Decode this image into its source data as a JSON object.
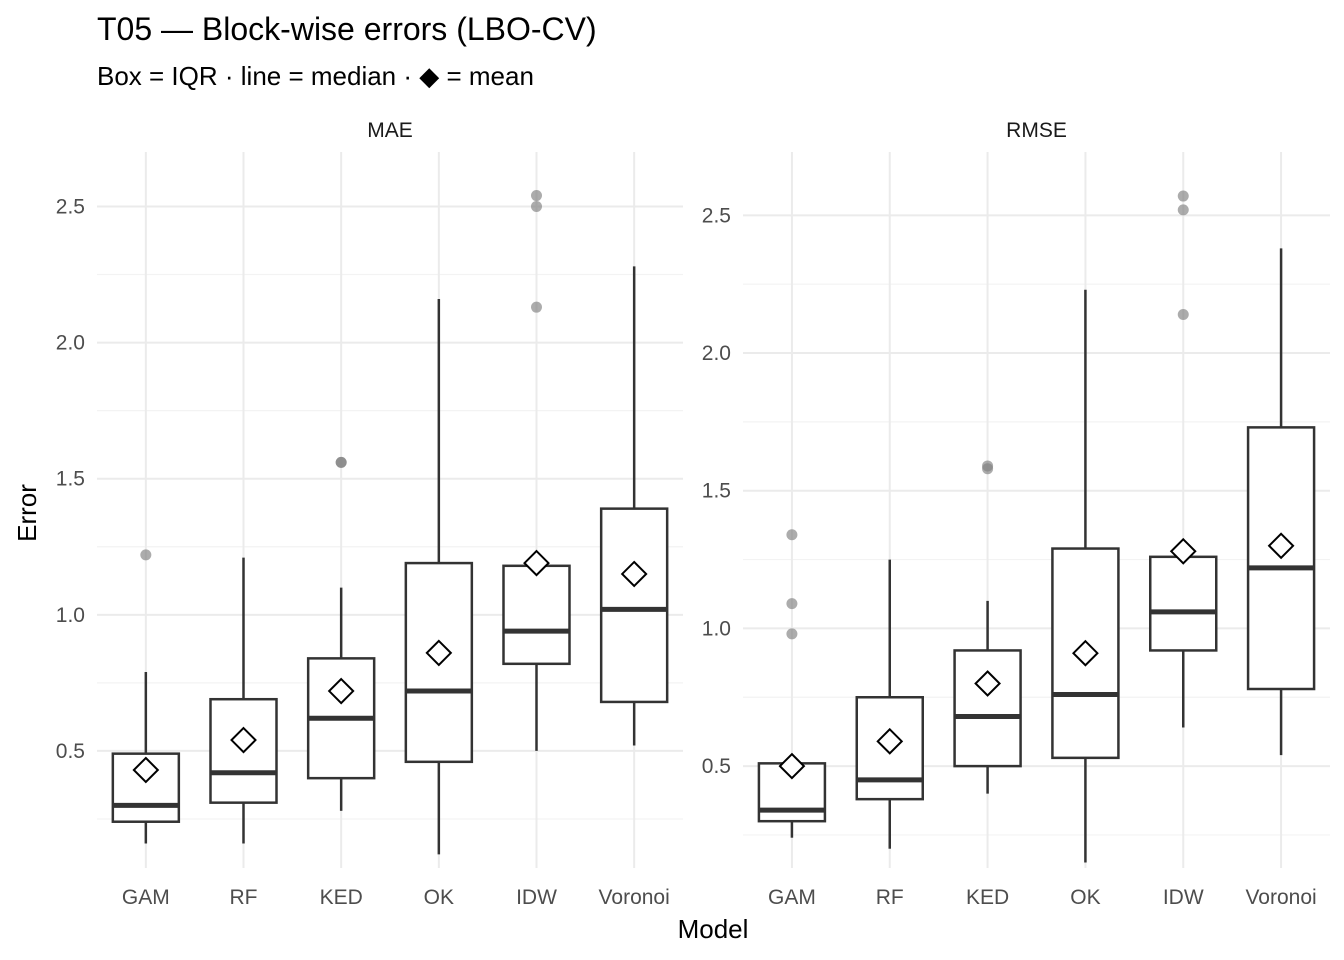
{
  "title": "T05 — Block-wise errors (LBO-CV)",
  "subtitle": "Box = IQR · line = median ·  ◆  = mean",
  "xlabel": "Model",
  "ylabel": "Error",
  "colors": {
    "box_stroke": "#333333",
    "outlier": "#7f7f7f",
    "grid_major": "#ebebeb",
    "grid_minor": "#f3f3f3",
    "mean_marker_stroke": "#000000",
    "mean_marker_fill": "#ffffff"
  },
  "chart_data": {
    "type": "box",
    "categories": [
      "GAM",
      "RF",
      "KED",
      "OK",
      "IDW",
      "Voronoi"
    ],
    "grid": true,
    "facets": [
      {
        "name": "MAE",
        "y_ticks": [
          0.5,
          1.0,
          1.5,
          2.0,
          2.5
        ],
        "y_tick_labels": [
          "0.5",
          "1.0",
          "1.5",
          "2.0",
          "2.5"
        ],
        "ylim": [
          0.07,
          2.7
        ],
        "boxes": [
          {
            "model": "GAM",
            "whisker_low": 0.16,
            "q1": 0.24,
            "median": 0.3,
            "q3": 0.49,
            "whisker_high": 0.79,
            "mean": 0.43,
            "outliers": [
              1.22
            ]
          },
          {
            "model": "RF",
            "whisker_low": 0.16,
            "q1": 0.31,
            "median": 0.42,
            "q3": 0.69,
            "whisker_high": 1.21,
            "mean": 0.54,
            "outliers": []
          },
          {
            "model": "KED",
            "whisker_low": 0.28,
            "q1": 0.4,
            "median": 0.62,
            "q3": 0.84,
            "whisker_high": 1.1,
            "mean": 0.72,
            "outliers": [
              1.56,
              1.56
            ]
          },
          {
            "model": "OK",
            "whisker_low": 0.12,
            "q1": 0.46,
            "median": 0.72,
            "q3": 1.19,
            "whisker_high": 2.16,
            "mean": 0.86,
            "outliers": []
          },
          {
            "model": "IDW",
            "whisker_low": 0.5,
            "q1": 0.82,
            "median": 0.94,
            "q3": 1.18,
            "whisker_high": 1.18,
            "mean": 1.19,
            "outliers": [
              2.13,
              2.5,
              2.54
            ]
          },
          {
            "model": "Voronoi",
            "whisker_low": 0.52,
            "q1": 0.68,
            "median": 1.02,
            "q3": 1.39,
            "whisker_high": 2.28,
            "mean": 1.15,
            "outliers": []
          }
        ]
      },
      {
        "name": "RMSE",
        "y_ticks": [
          0.5,
          1.0,
          1.5,
          2.0,
          2.5
        ],
        "y_tick_labels": [
          "0.5",
          "1.0",
          "1.5",
          "2.0",
          "2.5"
        ],
        "ylim": [
          0.13,
          2.73
        ],
        "boxes": [
          {
            "model": "GAM",
            "whisker_low": 0.24,
            "q1": 0.3,
            "median": 0.34,
            "q3": 0.51,
            "whisker_high": 0.51,
            "mean": 0.5,
            "outliers": [
              0.98,
              1.09,
              1.34
            ]
          },
          {
            "model": "RF",
            "whisker_low": 0.2,
            "q1": 0.38,
            "median": 0.45,
            "q3": 0.75,
            "whisker_high": 1.25,
            "mean": 0.59,
            "outliers": []
          },
          {
            "model": "KED",
            "whisker_low": 0.4,
            "q1": 0.5,
            "median": 0.68,
            "q3": 0.92,
            "whisker_high": 1.1,
            "mean": 0.8,
            "outliers": [
              1.58,
              1.59
            ]
          },
          {
            "model": "OK",
            "whisker_low": 0.15,
            "q1": 0.53,
            "median": 0.76,
            "q3": 1.29,
            "whisker_high": 2.23,
            "mean": 0.91,
            "outliers": []
          },
          {
            "model": "IDW",
            "whisker_low": 0.64,
            "q1": 0.92,
            "median": 1.06,
            "q3": 1.26,
            "whisker_high": 1.26,
            "mean": 1.28,
            "outliers": [
              2.14,
              2.52,
              2.57
            ]
          },
          {
            "model": "Voronoi",
            "whisker_low": 0.54,
            "q1": 0.78,
            "median": 1.22,
            "q3": 1.73,
            "whisker_high": 2.38,
            "mean": 1.3,
            "outliers": []
          }
        ]
      }
    ]
  }
}
